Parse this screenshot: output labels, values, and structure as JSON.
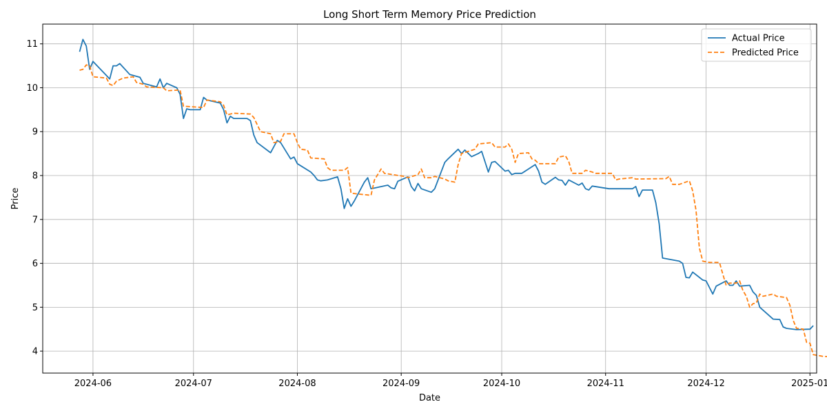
{
  "chart_data": {
    "type": "line",
    "title": "Long Short Term Memory Price Prediction",
    "xlabel": "Date",
    "ylabel": "Price",
    "x_start": "2024-05-17",
    "x_end": "2025-01-03",
    "ylim": [
      3.5,
      11.45
    ],
    "x_ticks": [
      "2024-06-01",
      "2024-07-01",
      "2024-08-01",
      "2024-09-01",
      "2024-10-01",
      "2024-11-01",
      "2024-12-01",
      "2025-01-01"
    ],
    "x_tick_labels": [
      "2024-06",
      "2024-07",
      "2024-08",
      "2024-09",
      "2024-10",
      "2024-11",
      "2024-12",
      "2025-01"
    ],
    "y_ticks": [
      4,
      5,
      6,
      7,
      8,
      9,
      10,
      11
    ],
    "grid": true,
    "legend_position": "top-right",
    "series": [
      {
        "name": "Actual Price",
        "color": "#1f77b4",
        "style": "solid",
        "points": [
          [
            "2024-05-28",
            10.82
          ],
          [
            "2024-05-29",
            11.1
          ],
          [
            "2024-05-30",
            10.95
          ],
          [
            "2024-05-31",
            10.42
          ],
          [
            "2024-06-01",
            10.6
          ],
          [
            "2024-06-05",
            10.28
          ],
          [
            "2024-06-06",
            10.2
          ],
          [
            "2024-06-07",
            10.5
          ],
          [
            "2024-06-08",
            10.5
          ],
          [
            "2024-06-09",
            10.55
          ],
          [
            "2024-06-12",
            10.3
          ],
          [
            "2024-06-15",
            10.24
          ],
          [
            "2024-06-16",
            10.1
          ],
          [
            "2024-06-20",
            10.02
          ],
          [
            "2024-06-21",
            10.2
          ],
          [
            "2024-06-22",
            10.0
          ],
          [
            "2024-06-23",
            10.1
          ],
          [
            "2024-06-26",
            10.0
          ],
          [
            "2024-06-27",
            9.85
          ],
          [
            "2024-06-28",
            9.3
          ],
          [
            "2024-06-29",
            9.52
          ],
          [
            "2024-06-30",
            9.5
          ],
          [
            "2024-07-03",
            9.5
          ],
          [
            "2024-07-04",
            9.78
          ],
          [
            "2024-07-05",
            9.72
          ],
          [
            "2024-07-09",
            9.65
          ],
          [
            "2024-07-10",
            9.5
          ],
          [
            "2024-07-11",
            9.2
          ],
          [
            "2024-07-12",
            9.35
          ],
          [
            "2024-07-13",
            9.3
          ],
          [
            "2024-07-17",
            9.3
          ],
          [
            "2024-07-18",
            9.25
          ],
          [
            "2024-07-19",
            8.92
          ],
          [
            "2024-07-20",
            8.75
          ],
          [
            "2024-07-24",
            8.52
          ],
          [
            "2024-07-26",
            8.8
          ],
          [
            "2024-07-27",
            8.75
          ],
          [
            "2024-07-30",
            8.38
          ],
          [
            "2024-07-31",
            8.42
          ],
          [
            "2024-08-01",
            8.27
          ],
          [
            "2024-08-05",
            8.08
          ],
          [
            "2024-08-06",
            8.0
          ],
          [
            "2024-08-07",
            7.9
          ],
          [
            "2024-08-08",
            7.88
          ],
          [
            "2024-08-10",
            7.9
          ],
          [
            "2024-08-13",
            7.97
          ],
          [
            "2024-08-14",
            7.7
          ],
          [
            "2024-08-15",
            7.25
          ],
          [
            "2024-08-16",
            7.47
          ],
          [
            "2024-08-17",
            7.3
          ],
          [
            "2024-08-18",
            7.42
          ],
          [
            "2024-08-21",
            7.85
          ],
          [
            "2024-08-22",
            7.95
          ],
          [
            "2024-08-23",
            7.7
          ],
          [
            "2024-08-28",
            7.78
          ],
          [
            "2024-08-29",
            7.72
          ],
          [
            "2024-08-30",
            7.7
          ],
          [
            "2024-08-31",
            7.87
          ],
          [
            "2024-09-03",
            7.97
          ],
          [
            "2024-09-04",
            7.75
          ],
          [
            "2024-09-05",
            7.65
          ],
          [
            "2024-09-06",
            7.82
          ],
          [
            "2024-09-07",
            7.7
          ],
          [
            "2024-09-10",
            7.62
          ],
          [
            "2024-09-11",
            7.7
          ],
          [
            "2024-09-14",
            8.3
          ],
          [
            "2024-09-15",
            8.38
          ],
          [
            "2024-09-18",
            8.6
          ],
          [
            "2024-09-19",
            8.5
          ],
          [
            "2024-09-20",
            8.58
          ],
          [
            "2024-09-22",
            8.43
          ],
          [
            "2024-09-24",
            8.5
          ],
          [
            "2024-09-25",
            8.55
          ],
          [
            "2024-09-27",
            8.08
          ],
          [
            "2024-09-28",
            8.3
          ],
          [
            "2024-09-29",
            8.32
          ],
          [
            "2024-10-02",
            8.1
          ],
          [
            "2024-10-03",
            8.12
          ],
          [
            "2024-10-04",
            8.02
          ],
          [
            "2024-10-05",
            8.05
          ],
          [
            "2024-10-07",
            8.05
          ],
          [
            "2024-10-11",
            8.25
          ],
          [
            "2024-10-12",
            8.1
          ],
          [
            "2024-10-13",
            7.85
          ],
          [
            "2024-10-14",
            7.8
          ],
          [
            "2024-10-17",
            7.96
          ],
          [
            "2024-10-18",
            7.9
          ],
          [
            "2024-10-19",
            7.89
          ],
          [
            "2024-10-20",
            7.78
          ],
          [
            "2024-10-21",
            7.9
          ],
          [
            "2024-10-24",
            7.78
          ],
          [
            "2024-10-25",
            7.83
          ],
          [
            "2024-10-26",
            7.7
          ],
          [
            "2024-10-27",
            7.67
          ],
          [
            "2024-10-28",
            7.76
          ],
          [
            "2024-11-02",
            7.7
          ],
          [
            "2024-11-09",
            7.7
          ],
          [
            "2024-11-10",
            7.75
          ],
          [
            "2024-11-11",
            7.52
          ],
          [
            "2024-11-12",
            7.67
          ],
          [
            "2024-11-15",
            7.67
          ],
          [
            "2024-11-16",
            7.38
          ],
          [
            "2024-11-17",
            6.9
          ],
          [
            "2024-11-18",
            6.12
          ],
          [
            "2024-11-23",
            6.05
          ],
          [
            "2024-11-24",
            6.0
          ],
          [
            "2024-11-25",
            5.68
          ],
          [
            "2024-11-26",
            5.67
          ],
          [
            "2024-11-27",
            5.8
          ],
          [
            "2024-11-30",
            5.62
          ],
          [
            "2024-12-01",
            5.6
          ],
          [
            "2024-12-02",
            5.45
          ],
          [
            "2024-12-03",
            5.3
          ],
          [
            "2024-12-04",
            5.48
          ],
          [
            "2024-12-07",
            5.6
          ],
          [
            "2024-12-08",
            5.5
          ],
          [
            "2024-12-09",
            5.5
          ],
          [
            "2024-12-10",
            5.6
          ],
          [
            "2024-12-11",
            5.48
          ],
          [
            "2024-12-14",
            5.5
          ],
          [
            "2024-12-15",
            5.35
          ],
          [
            "2024-12-16",
            5.27
          ],
          [
            "2024-12-17",
            5.0
          ],
          [
            "2024-12-21",
            4.73
          ],
          [
            "2024-12-23",
            4.72
          ],
          [
            "2024-12-24",
            4.55
          ],
          [
            "2024-12-25",
            4.52
          ],
          [
            "2024-12-28",
            4.49
          ],
          [
            "2025-01-01",
            4.5
          ],
          [
            "2025-01-02",
            4.58
          ]
        ]
      },
      {
        "name": "Predicted Price",
        "color": "#ff7f0e",
        "style": "dashed",
        "points": [
          [
            "2024-05-28",
            10.4
          ],
          [
            "2024-05-29",
            10.42
          ],
          [
            "2024-05-30",
            10.52
          ],
          [
            "2024-05-31",
            10.5
          ],
          [
            "2024-06-01",
            10.25
          ],
          [
            "2024-06-05",
            10.22
          ],
          [
            "2024-06-06",
            10.08
          ],
          [
            "2024-06-07",
            10.05
          ],
          [
            "2024-06-08",
            10.15
          ],
          [
            "2024-06-10",
            10.22
          ],
          [
            "2024-06-13",
            10.25
          ],
          [
            "2024-06-14",
            10.12
          ],
          [
            "2024-06-16",
            10.08
          ],
          [
            "2024-06-17",
            10.02
          ],
          [
            "2024-06-22",
            10.0
          ],
          [
            "2024-06-23",
            9.93
          ],
          [
            "2024-06-27",
            9.95
          ],
          [
            "2024-06-28",
            9.58
          ],
          [
            "2024-07-04",
            9.55
          ],
          [
            "2024-07-05",
            9.72
          ],
          [
            "2024-07-09",
            9.68
          ],
          [
            "2024-07-10",
            9.6
          ],
          [
            "2024-07-11",
            9.38
          ],
          [
            "2024-07-13",
            9.42
          ],
          [
            "2024-07-18",
            9.4
          ],
          [
            "2024-07-19",
            9.32
          ],
          [
            "2024-07-21",
            9.0
          ],
          [
            "2024-07-24",
            8.95
          ],
          [
            "2024-07-25",
            8.75
          ],
          [
            "2024-07-27",
            8.78
          ],
          [
            "2024-07-28",
            8.95
          ],
          [
            "2024-07-31",
            8.95
          ],
          [
            "2024-08-01",
            8.75
          ],
          [
            "2024-08-02",
            8.6
          ],
          [
            "2024-08-04",
            8.58
          ],
          [
            "2024-08-05",
            8.4
          ],
          [
            "2024-08-09",
            8.38
          ],
          [
            "2024-08-10",
            8.18
          ],
          [
            "2024-08-11",
            8.12
          ],
          [
            "2024-08-15",
            8.12
          ],
          [
            "2024-08-16",
            8.18
          ],
          [
            "2024-08-17",
            7.6
          ],
          [
            "2024-08-19",
            7.58
          ],
          [
            "2024-08-23",
            7.55
          ],
          [
            "2024-08-24",
            7.9
          ],
          [
            "2024-08-26",
            8.15
          ],
          [
            "2024-08-27",
            8.05
          ],
          [
            "2024-09-02",
            7.98
          ],
          [
            "2024-09-03",
            7.95
          ],
          [
            "2024-09-06",
            8.02
          ],
          [
            "2024-09-07",
            8.15
          ],
          [
            "2024-09-08",
            7.95
          ],
          [
            "2024-09-10",
            7.95
          ],
          [
            "2024-09-11",
            7.98
          ],
          [
            "2024-09-14",
            7.92
          ],
          [
            "2024-09-15",
            7.88
          ],
          [
            "2024-09-17",
            7.85
          ],
          [
            "2024-09-18",
            8.25
          ],
          [
            "2024-09-19",
            8.5
          ],
          [
            "2024-09-23",
            8.6
          ],
          [
            "2024-09-24",
            8.72
          ],
          [
            "2024-09-28",
            8.75
          ],
          [
            "2024-09-29",
            8.65
          ],
          [
            "2024-10-02",
            8.65
          ],
          [
            "2024-10-03",
            8.72
          ],
          [
            "2024-10-04",
            8.6
          ],
          [
            "2024-10-05",
            8.3
          ],
          [
            "2024-10-06",
            8.5
          ],
          [
            "2024-10-09",
            8.52
          ],
          [
            "2024-10-10",
            8.38
          ],
          [
            "2024-10-11",
            8.35
          ],
          [
            "2024-10-12",
            8.27
          ],
          [
            "2024-10-17",
            8.27
          ],
          [
            "2024-10-18",
            8.42
          ],
          [
            "2024-10-20",
            8.45
          ],
          [
            "2024-10-21",
            8.32
          ],
          [
            "2024-10-22",
            8.05
          ],
          [
            "2024-10-25",
            8.05
          ],
          [
            "2024-10-26",
            8.12
          ],
          [
            "2024-10-28",
            8.08
          ],
          [
            "2024-10-29",
            8.05
          ],
          [
            "2024-11-03",
            8.05
          ],
          [
            "2024-11-04",
            7.9
          ],
          [
            "2024-11-05",
            7.92
          ],
          [
            "2024-11-09",
            7.95
          ],
          [
            "2024-11-10",
            7.92
          ],
          [
            "2024-11-19",
            7.93
          ],
          [
            "2024-11-20",
            7.98
          ],
          [
            "2024-11-21",
            7.8
          ],
          [
            "2024-11-23",
            7.8
          ],
          [
            "2024-11-26",
            7.88
          ],
          [
            "2024-11-27",
            7.65
          ],
          [
            "2024-11-28",
            7.2
          ],
          [
            "2024-11-29",
            6.35
          ],
          [
            "2024-11-30",
            6.05
          ],
          [
            "2024-12-02",
            6.02
          ],
          [
            "2024-12-05",
            6.02
          ],
          [
            "2024-12-06",
            5.75
          ],
          [
            "2024-12-07",
            5.5
          ],
          [
            "2024-12-08",
            5.55
          ],
          [
            "2024-12-10",
            5.55
          ],
          [
            "2024-12-11",
            5.6
          ],
          [
            "2024-12-12",
            5.38
          ],
          [
            "2024-12-13",
            5.25
          ],
          [
            "2024-12-14",
            5.0
          ],
          [
            "2024-12-15",
            5.08
          ],
          [
            "2024-12-16",
            5.1
          ],
          [
            "2024-12-17",
            5.3
          ],
          [
            "2024-12-18",
            5.25
          ],
          [
            "2024-12-21",
            5.3
          ],
          [
            "2024-12-22",
            5.25
          ],
          [
            "2024-12-25",
            5.22
          ],
          [
            "2024-12-26",
            5.05
          ],
          [
            "2024-12-27",
            4.7
          ],
          [
            "2024-12-28",
            4.52
          ],
          [
            "2024-12-30",
            4.5
          ],
          [
            "2024-12-31",
            4.2
          ],
          [
            "2025-01-01",
            4.18
          ],
          [
            "2025-01-02",
            3.92
          ],
          [
            "2025-01-05",
            3.88
          ],
          [
            "2025-01-09",
            3.87
          ],
          [
            "2025-01-10",
            3.92
          ]
        ]
      }
    ]
  }
}
